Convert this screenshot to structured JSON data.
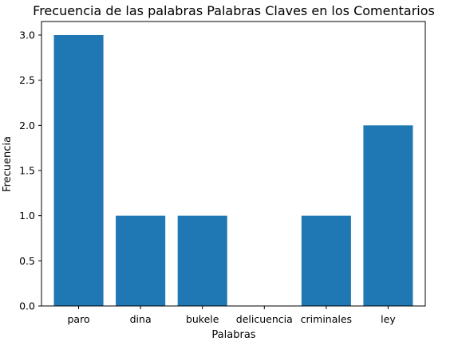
{
  "chart_data": {
    "type": "bar",
    "title": "Frecuencia de las palabras Palabras Claves en los Comentarios",
    "xlabel": "Palabras",
    "ylabel": "Frecuencia",
    "categories": [
      "paro",
      "dina",
      "bukele",
      "delicuencia",
      "criminales",
      "ley"
    ],
    "values": [
      3,
      1,
      1,
      0,
      1,
      2
    ],
    "ylim": [
      0,
      3.15
    ],
    "yticks": [
      0.0,
      0.5,
      1.0,
      1.5,
      2.0,
      2.5,
      3.0
    ],
    "ytick_labels": [
      "0.0",
      "0.5",
      "1.0",
      "1.5",
      "2.0",
      "2.5",
      "3.0"
    ],
    "grid": false,
    "bar_color": "#1f77b4"
  }
}
